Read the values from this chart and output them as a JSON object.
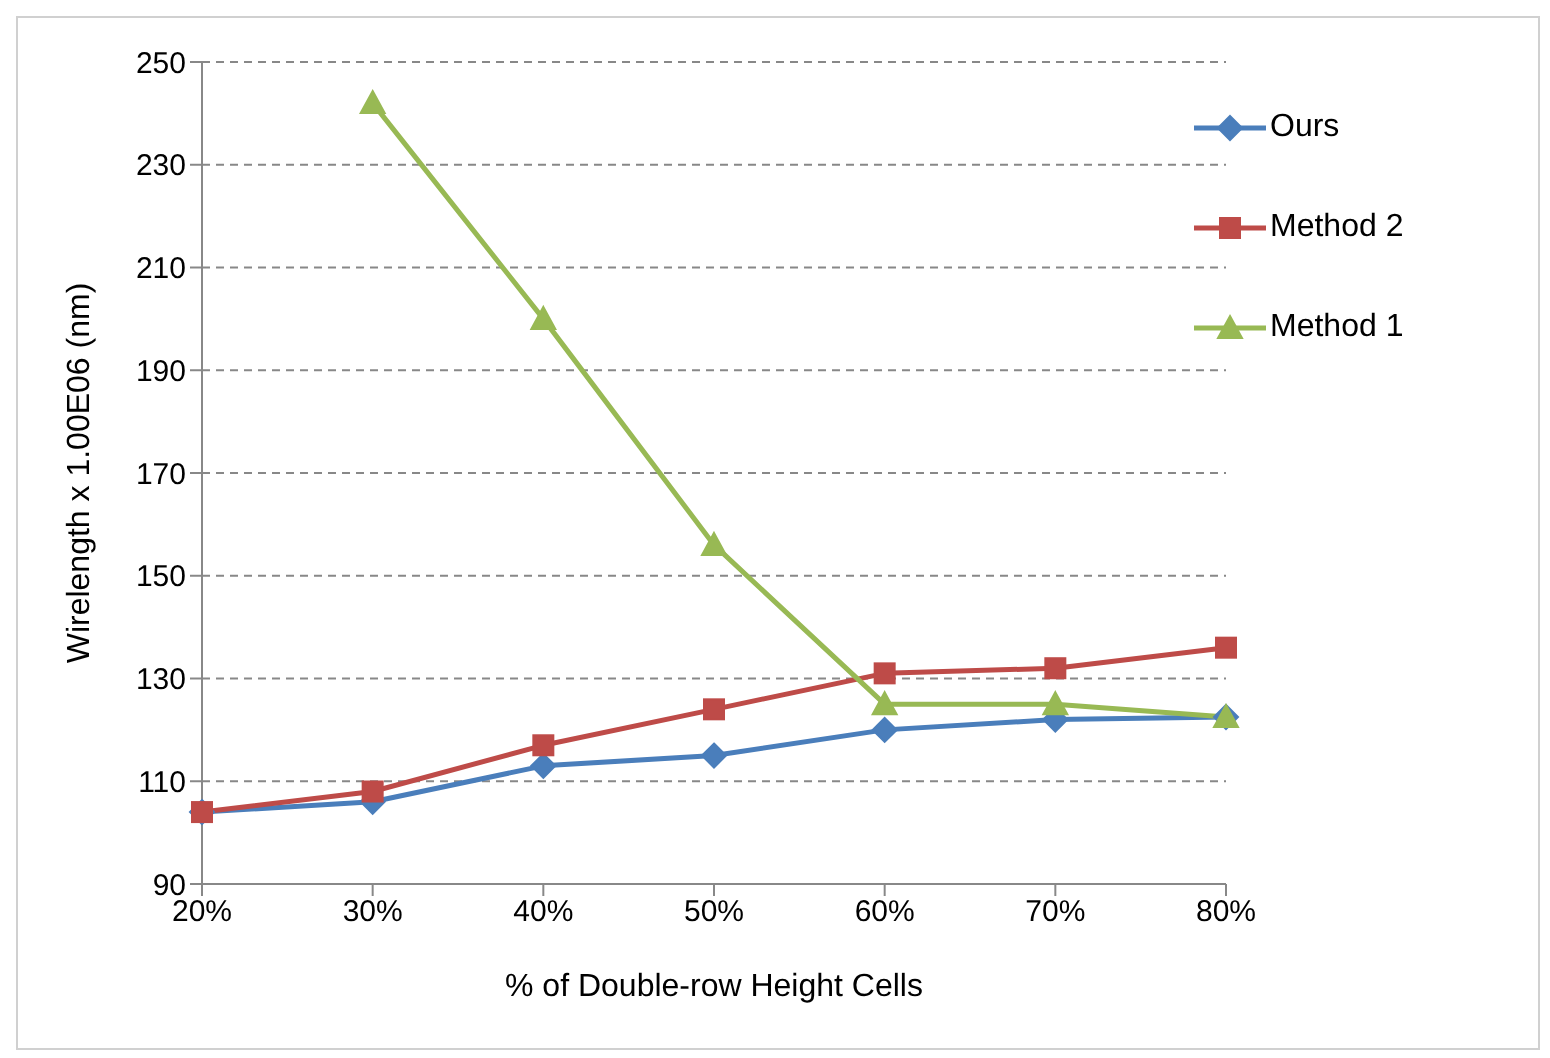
{
  "chart_data": {
    "type": "line",
    "xlabel": "% of Double-row Height Cells",
    "ylabel": "Wirelength x 1.00E06 (nm)",
    "categories": [
      "20%",
      "30%",
      "40%",
      "50%",
      "60%",
      "70%",
      "80%"
    ],
    "series": [
      {
        "name": "Ours",
        "color": "#4a7ebb",
        "marker": "diamond",
        "values": [
          104,
          106,
          113,
          115,
          120,
          122,
          122.5
        ]
      },
      {
        "name": "Method 2",
        "color": "#be4b48",
        "marker": "square",
        "values": [
          104,
          108,
          117,
          124,
          131,
          132,
          136
        ]
      },
      {
        "name": "Method 1",
        "color": "#98b954",
        "marker": "triangle",
        "values": [
          null,
          242,
          200,
          156,
          125,
          125,
          122.5
        ]
      }
    ],
    "ylim": [
      90,
      250
    ],
    "yticks": [
      90,
      110,
      130,
      150,
      170,
      190,
      210,
      230,
      250
    ],
    "grid": "y",
    "legend": "top right"
  }
}
